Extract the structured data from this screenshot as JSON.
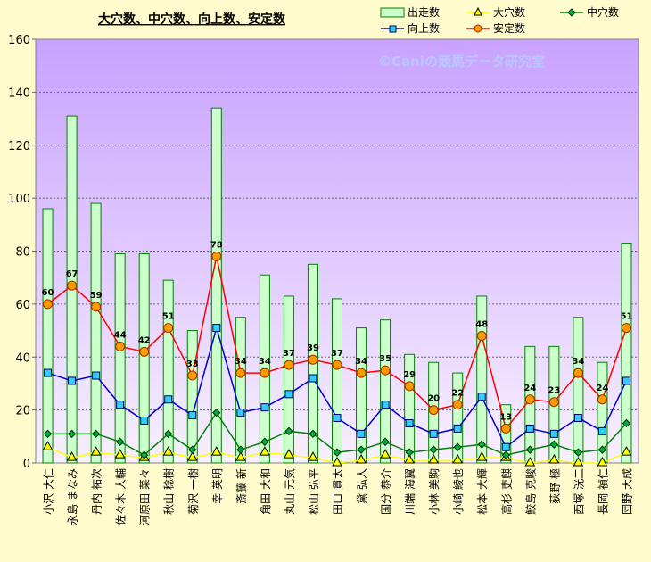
{
  "chart_data": {
    "type": "bar",
    "title": "大穴数、中穴数、向上数、安定数",
    "watermark": "©Caniの競馬データ研究室",
    "categories": [
      "小沢 大仁",
      "永島 まなみ",
      "丹内 祐次",
      "佐々木 大輔",
      "河原田 菜々",
      "秋山 稔樹",
      "菊沢 一樹",
      "幸 英明",
      "斎藤 新",
      "角田 大和",
      "丸山 元気",
      "松山 弘平",
      "田口 貫太",
      "黛 弘人",
      "国分 恭介",
      "川端 海翼",
      "小林 美駒",
      "小崎 綾也",
      "松本 大輝",
      "高杉 吏麒",
      "鮫島 克駿",
      "荻野 極",
      "西塚 洸二",
      "長岡 禎仁",
      "団野 大成"
    ],
    "ylim": [
      0,
      160
    ],
    "yticks": [
      0,
      20,
      40,
      60,
      80,
      100,
      120,
      140,
      160
    ],
    "grid": true,
    "legend_position": "top-right",
    "series": [
      {
        "name": "出走数",
        "kind": "bar",
        "color": "#ccffcc",
        "values": [
          96,
          131,
          98,
          79,
          79,
          69,
          50,
          134,
          55,
          71,
          63,
          75,
          62,
          51,
          54,
          41,
          38,
          34,
          63,
          22,
          44,
          44,
          55,
          38,
          83
        ]
      },
      {
        "name": "大穴数",
        "kind": "line",
        "color": "#ffff00",
        "marker": "triangle",
        "values": [
          6,
          2,
          4,
          3,
          2,
          4,
          2,
          4,
          2,
          4,
          3,
          2,
          0,
          1,
          3,
          1,
          1,
          1,
          2,
          2,
          0,
          1,
          0,
          0,
          4
        ]
      },
      {
        "name": "中穴数",
        "kind": "line",
        "color": "#008000",
        "marker": "diamond",
        "values": [
          11,
          11,
          11,
          8,
          3,
          11,
          5,
          19,
          5,
          8,
          12,
          11,
          4,
          5,
          8,
          4,
          5,
          6,
          7,
          3,
          5,
          7,
          4,
          5,
          15
        ]
      },
      {
        "name": "向上数",
        "kind": "line",
        "color": "#0000cc",
        "marker": "square",
        "values": [
          34,
          31,
          33,
          22,
          16,
          24,
          18,
          51,
          19,
          21,
          26,
          32,
          17,
          11,
          22,
          15,
          11,
          13,
          25,
          6,
          13,
          11,
          17,
          12,
          31
        ]
      },
      {
        "name": "安定数",
        "kind": "line",
        "color": "#ff0000",
        "marker": "circle",
        "values": [
          60,
          67,
          59,
          44,
          42,
          51,
          33,
          78,
          34,
          34,
          37,
          39,
          37,
          34,
          35,
          29,
          20,
          22,
          48,
          13,
          24,
          23,
          34,
          24,
          51
        ]
      }
    ]
  }
}
